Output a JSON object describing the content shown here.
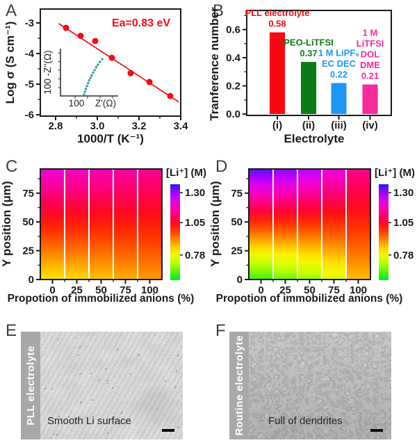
{
  "figure": {
    "background": "#ffffff"
  },
  "panels": {
    "a": {
      "letter": "A"
    },
    "b": {
      "letter": "B"
    },
    "c": {
      "letter": "C"
    },
    "d": {
      "letter": "D"
    },
    "e": {
      "letter": "E",
      "side_label": "PLL electrolyte",
      "caption": "Smooth Li surface"
    },
    "f": {
      "letter": "F",
      "side_label": "Routine electrolyte",
      "caption": "Full of dendrites"
    }
  },
  "colormap": [
    [
      0.57,
      "#00e83e"
    ],
    [
      0.64,
      "#55f400"
    ],
    [
      0.7,
      "#a8ff00"
    ],
    [
      0.76,
      "#e4ff00"
    ],
    [
      0.81,
      "#ffee00"
    ],
    [
      0.87,
      "#ffb000"
    ],
    [
      0.93,
      "#ff6c00"
    ],
    [
      0.99,
      "#ff3000"
    ],
    [
      1.04,
      "#ff0a1a"
    ],
    [
      1.09,
      "#ff0055"
    ],
    [
      1.14,
      "#fb0090"
    ],
    [
      1.19,
      "#f600c8"
    ],
    [
      1.24,
      "#e100f2"
    ],
    [
      1.29,
      "#a800ff"
    ],
    [
      1.33,
      "#6a14ff"
    ],
    [
      1.37,
      "#2a18f2"
    ]
  ],
  "chart_data": [
    {
      "panel": "A",
      "type": "scatter",
      "xlabel": "1000/T (K⁻¹)",
      "ylabel": "Log σ (S cm⁻¹)",
      "annotation": "Ea=0.83 eV",
      "x": [
        2.85,
        2.92,
        2.99,
        3.07,
        3.16,
        3.25,
        3.35
      ],
      "y": [
        -3.16,
        -3.42,
        -3.59,
        -4.14,
        -4.64,
        -4.93,
        -5.39
      ],
      "fit_line": {
        "x": [
          2.815,
          3.39
        ],
        "y": [
          -3.02,
          -5.58
        ]
      },
      "xlim": [
        2.73,
        3.41
      ],
      "ylim": [
        -6.0,
        -2.55
      ],
      "xticks": [
        2.8,
        3.0,
        3.2,
        3.4
      ],
      "xticks_minor": [
        2.9,
        3.1,
        3.3
      ],
      "yticks": [
        -3,
        -4,
        -5,
        -6
      ],
      "yticks_minor": [
        -3.5,
        -4.5,
        -5.5
      ],
      "point_color": "#f50a12",
      "line_color": "#f50a12",
      "inset": {
        "xlabel": "Z'(Ω)",
        "ylabel": "-Z''(Ω)",
        "xtick_label": "100",
        "ytick_label": "100",
        "color": "#3aa79e",
        "points": [
          [
            0,
            0
          ],
          [
            0.05,
            0.08
          ],
          [
            0.1,
            0.16
          ],
          [
            0.16,
            0.24
          ],
          [
            0.22,
            0.32
          ],
          [
            0.28,
            0.4
          ],
          [
            0.35,
            0.47
          ],
          [
            0.42,
            0.54
          ],
          [
            0.5,
            0.62
          ],
          [
            0.58,
            0.69
          ],
          [
            0.67,
            0.77
          ],
          [
            0.76,
            0.84
          ],
          [
            0.87,
            0.92
          ],
          [
            1,
            1
          ]
        ]
      }
    },
    {
      "panel": "B",
      "type": "bar",
      "xlabel": "Electrolyte",
      "ylabel": "Tranference number",
      "categories": [
        "(i)",
        "(ii)",
        "(iii)",
        "(iv)"
      ],
      "values": [
        0.58,
        0.37,
        0.22,
        0.21
      ],
      "bar_colors": [
        "#f50a12",
        "#0b7c12",
        "#1f97f5",
        "#f7299b"
      ],
      "bar_labels": [
        [
          "PLL electrolyte",
          "0.58"
        ],
        [
          "PEO-LiTFSI",
          "0.37"
        ],
        [
          "1 M LiPF₆",
          "EC DEC",
          "0.22"
        ],
        [
          "1 M",
          "LiTFSI",
          "DOL",
          "DME",
          "0.21"
        ]
      ],
      "ylim": [
        0,
        0.72
      ],
      "yticks": [
        0.0,
        0.2,
        0.4,
        0.6
      ],
      "yticks_minor": [
        0.1,
        0.3,
        0.5,
        0.7
      ]
    },
    {
      "panel": "C",
      "type": "heatmap",
      "xlabel": "Propotion of immobilized anions (%)",
      "ylabel": "Y position (μm)",
      "colorbar_label": "[Li⁺] (M)",
      "colorbar_ticks": [
        1.3,
        1.05,
        0.78
      ],
      "colorbar_range": [
        0.57,
        1.37
      ],
      "categories": [
        0,
        25,
        50,
        75,
        100
      ],
      "yticks": [
        0,
        25,
        50,
        75
      ],
      "ylim": [
        0,
        96
      ],
      "column_value_ranges_bottom_to_top": [
        [
          0.815,
          1.21
        ],
        [
          0.83,
          1.19
        ],
        [
          0.85,
          1.175
        ],
        [
          0.87,
          1.16
        ],
        [
          0.885,
          1.145
        ]
      ]
    },
    {
      "panel": "D",
      "type": "heatmap",
      "xlabel": "Propotion of immobilized anions (%)",
      "ylabel": "Y position (μm)",
      "colorbar_label": "[Li⁺] (M)",
      "colorbar_ticks": [
        1.3,
        1.05,
        0.78
      ],
      "colorbar_range": [
        0.57,
        1.37
      ],
      "categories": [
        0,
        25,
        50,
        75,
        100
      ],
      "yticks": [
        0,
        25,
        50,
        75
      ],
      "ylim": [
        0,
        96
      ],
      "column_value_ranges_bottom_to_top": [
        [
          0.62,
          1.345
        ],
        [
          0.655,
          1.315
        ],
        [
          0.69,
          1.28
        ],
        [
          0.755,
          1.22
        ],
        [
          0.855,
          1.14
        ]
      ]
    }
  ]
}
